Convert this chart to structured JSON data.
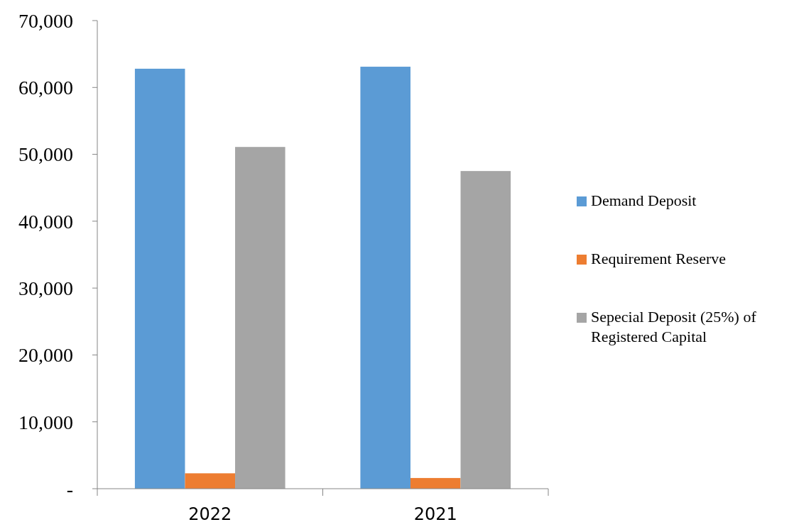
{
  "chart_data": {
    "type": "bar",
    "categories": [
      "2022",
      "2021"
    ],
    "series": [
      {
        "name": "Demand Deposit",
        "color": "#5b9bd5",
        "values": [
          62800,
          63100
        ]
      },
      {
        "name": "Requirement Reserve",
        "color": "#ed7d31",
        "values": [
          2300,
          1600
        ]
      },
      {
        "name": "Sepecial Deposit (25%) of Registered Capital",
        "color": "#a5a5a5",
        "values": [
          51100,
          47500
        ]
      }
    ],
    "ylim": [
      0,
      70000
    ],
    "yticks": [
      {
        "value": 0,
        "label": "-"
      },
      {
        "value": 10000,
        "label": "10,000"
      },
      {
        "value": 20000,
        "label": "20,000"
      },
      {
        "value": 30000,
        "label": "30,000"
      },
      {
        "value": 40000,
        "label": "40,000"
      },
      {
        "value": 50000,
        "label": "50,000"
      },
      {
        "value": 60000,
        "label": "60,000"
      },
      {
        "value": 70000,
        "label": "70,000"
      }
    ],
    "grid": false,
    "legend": "right"
  }
}
